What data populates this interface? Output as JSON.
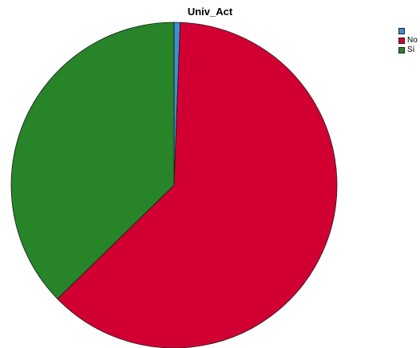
{
  "chart_data": {
    "type": "pie",
    "title": "Univ_Act",
    "legend_position": "top-right",
    "slices": [
      {
        "label": "",
        "value": 0.6,
        "color": "#3E8ED6"
      },
      {
        "label": "No",
        "value": 62.1,
        "color": "#D20032"
      },
      {
        "label": "Sí",
        "value": 37.3,
        "color": "#288429"
      }
    ]
  }
}
